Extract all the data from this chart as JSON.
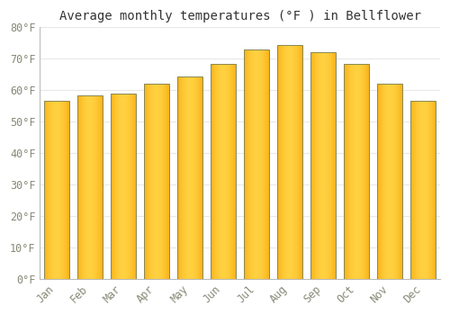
{
  "title": "Average monthly temperatures (°F ) in Bellflower",
  "months": [
    "Jan",
    "Feb",
    "Mar",
    "Apr",
    "May",
    "Jun",
    "Jul",
    "Aug",
    "Sep",
    "Oct",
    "Nov",
    "Dec"
  ],
  "temperatures": [
    56.5,
    58.5,
    59.0,
    62.0,
    64.5,
    68.5,
    73.0,
    74.5,
    72.0,
    68.5,
    62.0,
    56.5
  ],
  "bar_color_center": "#FFD040",
  "bar_color_edge": "#F5A000",
  "bar_edge_color": "#888855",
  "background_color": "#FFFFFF",
  "grid_color": "#E8E8E8",
  "text_color": "#888877",
  "title_color": "#333333",
  "ylim": [
    0,
    80
  ],
  "ytick_step": 10,
  "title_fontsize": 10,
  "tick_fontsize": 8.5
}
